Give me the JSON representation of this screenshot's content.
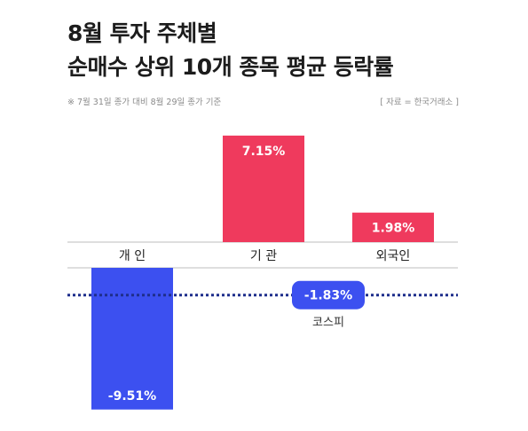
{
  "header": {
    "title_line1": "8월 투자 주체별",
    "title_line2": "순매수 상위 10개 종목 평균 등락률",
    "note": "※ 7월 31일 종가 대비 8월 29일 종가 기준",
    "source": "[ 자료 = 한국거래소 ]"
  },
  "chart_data": {
    "type": "bar",
    "categories": [
      "개 인",
      "기 관",
      "외국인"
    ],
    "values": [
      -9.51,
      7.15,
      1.98
    ],
    "value_labels": [
      "-9.51%",
      "7.15%",
      "1.98%"
    ],
    "unit": "%",
    "colors": {
      "positive": "#ef3a5d",
      "negative": "#3c50f0",
      "reference": "#1e2e8c"
    },
    "reference_line": {
      "name": "코스피",
      "value": -1.83,
      "label": "-1.83%"
    },
    "grid": false
  }
}
